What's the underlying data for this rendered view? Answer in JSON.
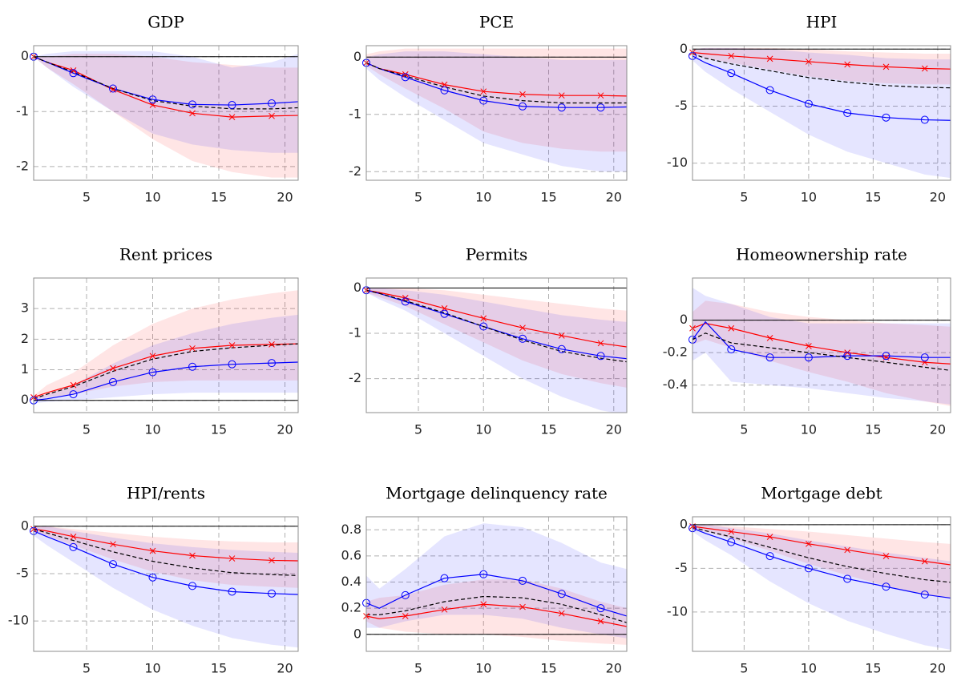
{
  "chart_data": [
    {
      "type": "line",
      "title": "GDP",
      "x": [
        1,
        2,
        4,
        7,
        10,
        13,
        16,
        19,
        21
      ],
      "xlim": [
        1,
        21
      ],
      "xticks": [
        5,
        10,
        15,
        20
      ],
      "ylim": [
        -2.25,
        0.2
      ],
      "yticks": [
        -2,
        -1,
        0
      ],
      "grid": true,
      "zero_line": true,
      "series": [
        {
          "color": "#ff0000",
          "marker": "x",
          "values": [
            0,
            -0.1,
            -0.25,
            -0.6,
            -0.88,
            -1.03,
            -1.1,
            -1.08,
            -1.07
          ]
        },
        {
          "color": "#0000ff",
          "marker": "o",
          "values": [
            0,
            -0.1,
            -0.3,
            -0.58,
            -0.78,
            -0.87,
            -0.88,
            -0.85,
            -0.82
          ]
        },
        {
          "color": "#000000",
          "dashed": true,
          "values": [
            0,
            -0.1,
            -0.28,
            -0.58,
            -0.8,
            -0.9,
            -0.95,
            -0.95,
            -0.93
          ]
        }
      ],
      "bands": [
        {
          "color": "#ff0000",
          "lower": [
            0,
            -0.2,
            -0.5,
            -1.0,
            -1.5,
            -1.9,
            -2.1,
            -2.2,
            -2.2
          ],
          "upper": [
            0,
            0,
            0.05,
            0.05,
            0,
            -0.1,
            -0.15,
            -0.2,
            -0.2
          ]
        },
        {
          "color": "#0000ff",
          "lower": [
            0,
            -0.2,
            -0.55,
            -1.0,
            -1.4,
            -1.6,
            -1.7,
            -1.75,
            -1.75
          ],
          "upper": [
            0,
            0.05,
            0.1,
            0.1,
            0.1,
            0,
            -0.2,
            -0.1,
            0.05
          ]
        }
      ]
    },
    {
      "type": "line",
      "title": "PCE",
      "x": [
        1,
        2,
        4,
        7,
        10,
        13,
        16,
        19,
        21
      ],
      "xlim": [
        1,
        21
      ],
      "xticks": [
        5,
        10,
        15,
        20
      ],
      "ylim": [
        -2.15,
        0.2
      ],
      "yticks": [
        -2,
        -1,
        0
      ],
      "grid": true,
      "zero_line": true,
      "series": [
        {
          "color": "#ff0000",
          "marker": "x",
          "values": [
            -0.1,
            -0.2,
            -0.3,
            -0.48,
            -0.6,
            -0.65,
            -0.67,
            -0.67,
            -0.68
          ]
        },
        {
          "color": "#0000ff",
          "marker": "o",
          "values": [
            -0.1,
            -0.2,
            -0.35,
            -0.58,
            -0.76,
            -0.86,
            -0.88,
            -0.88,
            -0.87
          ]
        },
        {
          "color": "#000000",
          "dashed": true,
          "values": [
            -0.1,
            -0.2,
            -0.33,
            -0.52,
            -0.68,
            -0.76,
            -0.8,
            -0.8,
            -0.8
          ]
        }
      ],
      "bands": [
        {
          "color": "#ff0000",
          "lower": [
            -0.15,
            -0.3,
            -0.55,
            -0.9,
            -1.3,
            -1.5,
            -1.6,
            -1.65,
            -1.65
          ],
          "upper": [
            0.05,
            0.1,
            0.15,
            0.15,
            0.15,
            0.15,
            0.15,
            0.15,
            0.15
          ]
        },
        {
          "color": "#0000ff",
          "lower": [
            -0.2,
            -0.4,
            -0.7,
            -1.1,
            -1.5,
            -1.7,
            -1.9,
            -2.0,
            -2.0
          ],
          "upper": [
            0,
            0.05,
            0.1,
            0.1,
            0.05,
            0,
            -0.05,
            -0.05,
            -0.05
          ]
        }
      ]
    },
    {
      "type": "line",
      "title": "HPI",
      "x": [
        1,
        2,
        4,
        7,
        10,
        13,
        16,
        19,
        21
      ],
      "xlim": [
        1,
        21
      ],
      "xticks": [
        5,
        10,
        15,
        20
      ],
      "ylim": [
        -11.5,
        0.3
      ],
      "yticks": [
        -10,
        -5,
        0
      ],
      "grid": true,
      "zero_line": true,
      "series": [
        {
          "color": "#ff0000",
          "marker": "x",
          "values": [
            -0.3,
            -0.4,
            -0.6,
            -0.85,
            -1.1,
            -1.35,
            -1.55,
            -1.7,
            -1.75
          ]
        },
        {
          "color": "#0000ff",
          "marker": "o",
          "values": [
            -0.6,
            -1.2,
            -2.1,
            -3.6,
            -4.8,
            -5.6,
            -6.0,
            -6.2,
            -6.25
          ]
        },
        {
          "color": "#000000",
          "dashed": true,
          "values": [
            -0.4,
            -0.8,
            -1.3,
            -1.9,
            -2.5,
            -2.9,
            -3.2,
            -3.35,
            -3.4
          ]
        }
      ],
      "bands": [
        {
          "color": "#ff0000",
          "lower": [
            -0.5,
            -0.8,
            -1.2,
            -1.8,
            -2.4,
            -2.8,
            -3.0,
            -3.1,
            -3.1
          ],
          "upper": [
            0,
            0.1,
            0.1,
            0.1,
            0,
            -0.2,
            -0.3,
            -0.4,
            -0.4
          ]
        },
        {
          "color": "#0000ff",
          "lower": [
            -1,
            -2,
            -3.5,
            -5.5,
            -7.5,
            -9,
            -10,
            -11,
            -11.3
          ],
          "upper": [
            0,
            0.1,
            0.1,
            0,
            -0.3,
            -0.5,
            -0.8,
            -0.9,
            -0.9
          ]
        }
      ]
    },
    {
      "type": "line",
      "title": "Rent prices",
      "x": [
        1,
        2,
        4,
        7,
        10,
        13,
        16,
        19,
        21
      ],
      "xlim": [
        1,
        21
      ],
      "xticks": [
        5,
        10,
        15,
        20
      ],
      "ylim": [
        -0.4,
        4.0
      ],
      "yticks": [
        0,
        1,
        2,
        3
      ],
      "grid": true,
      "zero_line": true,
      "series": [
        {
          "color": "#ff0000",
          "marker": "x",
          "values": [
            0.1,
            0.25,
            0.5,
            1.05,
            1.45,
            1.7,
            1.8,
            1.83,
            1.85
          ]
        },
        {
          "color": "#0000ff",
          "marker": "o",
          "values": [
            0,
            0.05,
            0.2,
            0.6,
            0.92,
            1.1,
            1.18,
            1.22,
            1.25
          ]
        },
        {
          "color": "#000000",
          "dashed": true,
          "values": [
            0.05,
            0.2,
            0.45,
            0.95,
            1.35,
            1.6,
            1.72,
            1.8,
            1.85
          ]
        }
      ],
      "bands": [
        {
          "color": "#ff0000",
          "lower": [
            0,
            0.1,
            0.2,
            0.45,
            0.6,
            0.65,
            0.65,
            0.65,
            0.65
          ],
          "upper": [
            0.15,
            0.5,
            0.9,
            1.8,
            2.5,
            3.0,
            3.3,
            3.5,
            3.6
          ]
        },
        {
          "color": "#0000ff",
          "lower": [
            -0.1,
            -0.05,
            0,
            0.1,
            0.2,
            0.25,
            0.25,
            0.25,
            0.25
          ],
          "upper": [
            0.1,
            0.2,
            0.5,
            1.2,
            1.8,
            2.2,
            2.5,
            2.7,
            2.8
          ]
        }
      ]
    },
    {
      "type": "line",
      "title": "Permits",
      "x": [
        1,
        2,
        4,
        7,
        10,
        13,
        16,
        19,
        21
      ],
      "xlim": [
        1,
        21
      ],
      "xticks": [
        5,
        10,
        15,
        20
      ],
      "ylim": [
        -2.75,
        0.22
      ],
      "yticks": [
        -2,
        -1,
        0
      ],
      "grid": true,
      "zero_line": true,
      "series": [
        {
          "color": "#ff0000",
          "marker": "x",
          "values": [
            -0.05,
            -0.1,
            -0.22,
            -0.45,
            -0.67,
            -0.88,
            -1.05,
            -1.22,
            -1.3
          ]
        },
        {
          "color": "#0000ff",
          "marker": "o",
          "values": [
            -0.05,
            -0.12,
            -0.3,
            -0.57,
            -0.85,
            -1.12,
            -1.35,
            -1.5,
            -1.56
          ]
        },
        {
          "color": "#000000",
          "dashed": true,
          "values": [
            -0.05,
            -0.12,
            -0.28,
            -0.55,
            -0.85,
            -1.15,
            -1.4,
            -1.55,
            -1.63
          ]
        }
      ],
      "bands": [
        {
          "color": "#ff0000",
          "lower": [
            -0.1,
            -0.2,
            -0.4,
            -0.8,
            -1.2,
            -1.6,
            -1.9,
            -2.1,
            -2.2
          ],
          "upper": [
            0,
            0,
            0,
            -0.05,
            -0.15,
            -0.25,
            -0.35,
            -0.45,
            -0.5
          ]
        },
        {
          "color": "#0000ff",
          "lower": [
            -0.1,
            -0.25,
            -0.5,
            -1.0,
            -1.5,
            -2.0,
            -2.4,
            -2.7,
            -2.8
          ],
          "upper": [
            0,
            0,
            -0.05,
            -0.15,
            -0.3,
            -0.45,
            -0.6,
            -0.7,
            -0.75
          ]
        }
      ]
    },
    {
      "type": "line",
      "title": "Homeownership rate",
      "x": [
        1,
        2,
        4,
        7,
        10,
        13,
        16,
        19,
        21
      ],
      "xlim": [
        1,
        21
      ],
      "xticks": [
        5,
        10,
        15,
        20
      ],
      "ylim": [
        -0.57,
        0.26
      ],
      "yticks": [
        -0.4,
        -0.2,
        0
      ],
      "grid": true,
      "zero_line": true,
      "series": [
        {
          "color": "#ff0000",
          "marker": "x",
          "values": [
            -0.05,
            -0.02,
            -0.05,
            -0.11,
            -0.16,
            -0.2,
            -0.23,
            -0.26,
            -0.27
          ]
        },
        {
          "color": "#0000ff",
          "marker": "o",
          "values": [
            -0.12,
            -0.01,
            -0.18,
            -0.23,
            -0.23,
            -0.22,
            -0.22,
            -0.23,
            -0.23
          ]
        },
        {
          "color": "#000000",
          "dashed": true,
          "values": [
            -0.12,
            -0.08,
            -0.14,
            -0.17,
            -0.2,
            -0.23,
            -0.26,
            -0.29,
            -0.31
          ]
        }
      ],
      "bands": [
        {
          "color": "#ff0000",
          "lower": [
            -0.15,
            -0.12,
            -0.17,
            -0.25,
            -0.32,
            -0.38,
            -0.45,
            -0.5,
            -0.53
          ],
          "upper": [
            0.05,
            0.12,
            0.1,
            0.05,
            0.02,
            0,
            -0.02,
            -0.03,
            -0.04
          ]
        },
        {
          "color": "#0000ff",
          "lower": [
            -0.25,
            -0.2,
            -0.38,
            -0.4,
            -0.42,
            -0.45,
            -0.48,
            -0.5,
            -0.52
          ],
          "upper": [
            0.2,
            0.15,
            0.1,
            0.02,
            -0.02,
            -0.02,
            -0.02,
            -0.02,
            -0.02
          ]
        }
      ]
    },
    {
      "type": "line",
      "title": "HPI/rents",
      "x": [
        1,
        2,
        4,
        7,
        10,
        13,
        16,
        19,
        21
      ],
      "xlim": [
        1,
        21
      ],
      "xticks": [
        5,
        10,
        15,
        20
      ],
      "ylim": [
        -13.2,
        1
      ],
      "yticks": [
        -10,
        -5,
        0
      ],
      "grid": true,
      "zero_line": true,
      "series": [
        {
          "color": "#ff0000",
          "marker": "x",
          "values": [
            -0.3,
            -0.5,
            -1.1,
            -1.9,
            -2.6,
            -3.1,
            -3.4,
            -3.6,
            -3.65
          ]
        },
        {
          "color": "#0000ff",
          "marker": "o",
          "values": [
            -0.5,
            -1.1,
            -2.2,
            -4.0,
            -5.4,
            -6.3,
            -6.9,
            -7.1,
            -7.2
          ]
        },
        {
          "color": "#000000",
          "dashed": true,
          "values": [
            -0.3,
            -0.7,
            -1.5,
            -2.7,
            -3.7,
            -4.4,
            -4.9,
            -5.1,
            -5.2
          ]
        }
      ],
      "bands": [
        {
          "color": "#ff0000",
          "lower": [
            -0.5,
            -1.0,
            -2.0,
            -3.5,
            -4.8,
            -5.7,
            -6.2,
            -6.4,
            -6.5
          ],
          "upper": [
            0,
            0,
            -0.3,
            -0.7,
            -1.1,
            -1.4,
            -1.6,
            -1.7,
            -1.7
          ]
        },
        {
          "color": "#0000ff",
          "lower": [
            -1,
            -2,
            -3.8,
            -6.5,
            -8.8,
            -10.5,
            -11.8,
            -12.5,
            -12.8
          ],
          "upper": [
            0,
            0,
            -0.5,
            -1.2,
            -1.8,
            -2.2,
            -2.5,
            -2.7,
            -2.8
          ]
        }
      ]
    },
    {
      "type": "line",
      "title": "Mortgage delinquency rate",
      "x": [
        1,
        2,
        4,
        7,
        10,
        13,
        16,
        19,
        21
      ],
      "xlim": [
        1,
        21
      ],
      "xticks": [
        5,
        10,
        15,
        20
      ],
      "ylim": [
        -0.13,
        0.9
      ],
      "yticks": [
        0,
        0.2,
        0.4,
        0.6,
        0.8
      ],
      "grid": true,
      "zero_line": true,
      "series": [
        {
          "color": "#ff0000",
          "marker": "x",
          "values": [
            0.14,
            0.12,
            0.14,
            0.19,
            0.23,
            0.21,
            0.16,
            0.1,
            0.06
          ]
        },
        {
          "color": "#0000ff",
          "marker": "o",
          "values": [
            0.24,
            0.2,
            0.3,
            0.43,
            0.46,
            0.41,
            0.31,
            0.2,
            0.14
          ]
        },
        {
          "color": "#000000",
          "dashed": true,
          "values": [
            0.15,
            0.15,
            0.18,
            0.25,
            0.29,
            0.28,
            0.23,
            0.15,
            0.09
          ]
        }
      ],
      "bands": [
        {
          "color": "#ff0000",
          "lower": [
            0.1,
            0.05,
            0.02,
            0,
            0,
            -0.02,
            -0.05,
            -0.07,
            -0.08
          ],
          "upper": [
            0.25,
            0.28,
            0.3,
            0.38,
            0.42,
            0.42,
            0.35,
            0.25,
            0.2
          ]
        },
        {
          "color": "#0000ff",
          "lower": [
            0.05,
            0.05,
            0.1,
            0.15,
            0.15,
            0.12,
            0.05,
            0,
            -0.03
          ],
          "upper": [
            0.45,
            0.35,
            0.5,
            0.75,
            0.85,
            0.82,
            0.7,
            0.55,
            0.5
          ]
        }
      ]
    },
    {
      "type": "line",
      "title": "Mortgage debt",
      "x": [
        1,
        2,
        4,
        7,
        10,
        13,
        16,
        19,
        21
      ],
      "xlim": [
        1,
        21
      ],
      "xticks": [
        5,
        10,
        15,
        20
      ],
      "ylim": [
        -14.5,
        0.9
      ],
      "yticks": [
        -10,
        -5,
        0
      ],
      "grid": true,
      "zero_line": true,
      "series": [
        {
          "color": "#ff0000",
          "marker": "x",
          "values": [
            -0.2,
            -0.4,
            -0.8,
            -1.4,
            -2.2,
            -2.9,
            -3.6,
            -4.2,
            -4.6
          ]
        },
        {
          "color": "#0000ff",
          "marker": "o",
          "values": [
            -0.4,
            -1.0,
            -2.0,
            -3.6,
            -5.0,
            -6.2,
            -7.1,
            -8.0,
            -8.4
          ]
        },
        {
          "color": "#000000",
          "dashed": true,
          "values": [
            -0.3,
            -0.7,
            -1.4,
            -2.6,
            -3.8,
            -4.8,
            -5.6,
            -6.3,
            -6.6
          ]
        }
      ],
      "bands": [
        {
          "color": "#ff0000",
          "lower": [
            -0.4,
            -0.8,
            -1.6,
            -3.0,
            -4.5,
            -5.8,
            -7.0,
            -8.0,
            -8.5
          ],
          "upper": [
            0,
            0,
            -0.2,
            -0.5,
            -0.8,
            -1.2,
            -1.6,
            -2.0,
            -2.2
          ]
        },
        {
          "color": "#0000ff",
          "lower": [
            -0.8,
            -1.8,
            -3.5,
            -6.5,
            -9.0,
            -11,
            -12.5,
            -13.8,
            -14.3
          ],
          "upper": [
            0,
            0,
            -0.4,
            -1.0,
            -1.8,
            -2.5,
            -3.2,
            -3.8,
            -4.2
          ]
        }
      ]
    }
  ]
}
